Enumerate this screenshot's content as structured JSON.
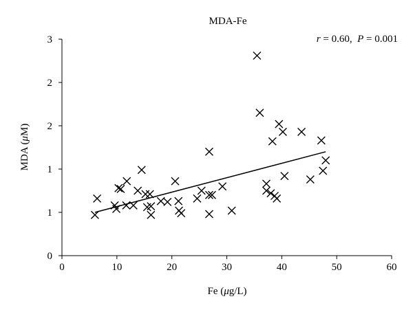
{
  "chart_data": {
    "type": "scatter",
    "title": "MDA-Fe",
    "annotation": {
      "r_label": "r",
      "r_text": " = 0.60,  ",
      "p_label": "P",
      "p_text": " = 0.001"
    },
    "xlabel": {
      "prefix": "Fe (",
      "mu": "μ",
      "suffix": "g/L)"
    },
    "ylabel": {
      "prefix": "MDA (",
      "mu": "μ",
      "suffix": "M)"
    },
    "xlim": [
      0,
      60
    ],
    "ylim": [
      0,
      2.5
    ],
    "x_ticks": [
      0,
      10,
      20,
      30,
      40,
      50,
      60
    ],
    "x_tick_labels": [
      "0",
      "10",
      "20",
      "30",
      "40",
      "50",
      "60"
    ],
    "y_ticks": [
      0,
      0.5,
      1,
      1.5,
      2,
      2.5
    ],
    "y_tick_labels": [
      "0",
      "1",
      "1",
      "2",
      "2",
      "3"
    ],
    "grid": false,
    "marker": "x",
    "points": [
      [
        6.0,
        0.47
      ],
      [
        6.4,
        0.66
      ],
      [
        9.6,
        0.58
      ],
      [
        9.9,
        0.54
      ],
      [
        10.3,
        0.78
      ],
      [
        10.7,
        0.77
      ],
      [
        11.8,
        0.86
      ],
      [
        11.7,
        0.58
      ],
      [
        13.0,
        0.58
      ],
      [
        14.5,
        0.99
      ],
      [
        13.8,
        0.75
      ],
      [
        15.2,
        0.71
      ],
      [
        16.0,
        0.71
      ],
      [
        15.5,
        0.56
      ],
      [
        16.2,
        0.57
      ],
      [
        16.2,
        0.47
      ],
      [
        18.0,
        0.63
      ],
      [
        19.2,
        0.62
      ],
      [
        20.6,
        0.86
      ],
      [
        21.2,
        0.63
      ],
      [
        21.3,
        0.52
      ],
      [
        21.7,
        0.49
      ],
      [
        24.6,
        0.66
      ],
      [
        25.4,
        0.75
      ],
      [
        26.8,
        0.7
      ],
      [
        27.3,
        0.7
      ],
      [
        26.8,
        1.2
      ],
      [
        26.8,
        0.48
      ],
      [
        29.2,
        0.8
      ],
      [
        30.9,
        0.52
      ],
      [
        35.5,
        2.31
      ],
      [
        36.0,
        1.65
      ],
      [
        37.2,
        0.83
      ],
      [
        37.2,
        0.75
      ],
      [
        38.0,
        0.72
      ],
      [
        38.7,
        0.69
      ],
      [
        39.1,
        0.66
      ],
      [
        38.3,
        1.32
      ],
      [
        39.5,
        1.52
      ],
      [
        40.2,
        1.43
      ],
      [
        40.5,
        0.92
      ],
      [
        43.6,
        1.43
      ],
      [
        45.2,
        0.88
      ],
      [
        47.2,
        1.33
      ],
      [
        47.5,
        0.98
      ],
      [
        48.0,
        1.1
      ]
    ],
    "trendline": [
      [
        6.0,
        0.5
      ],
      [
        48.0,
        1.2
      ]
    ]
  }
}
